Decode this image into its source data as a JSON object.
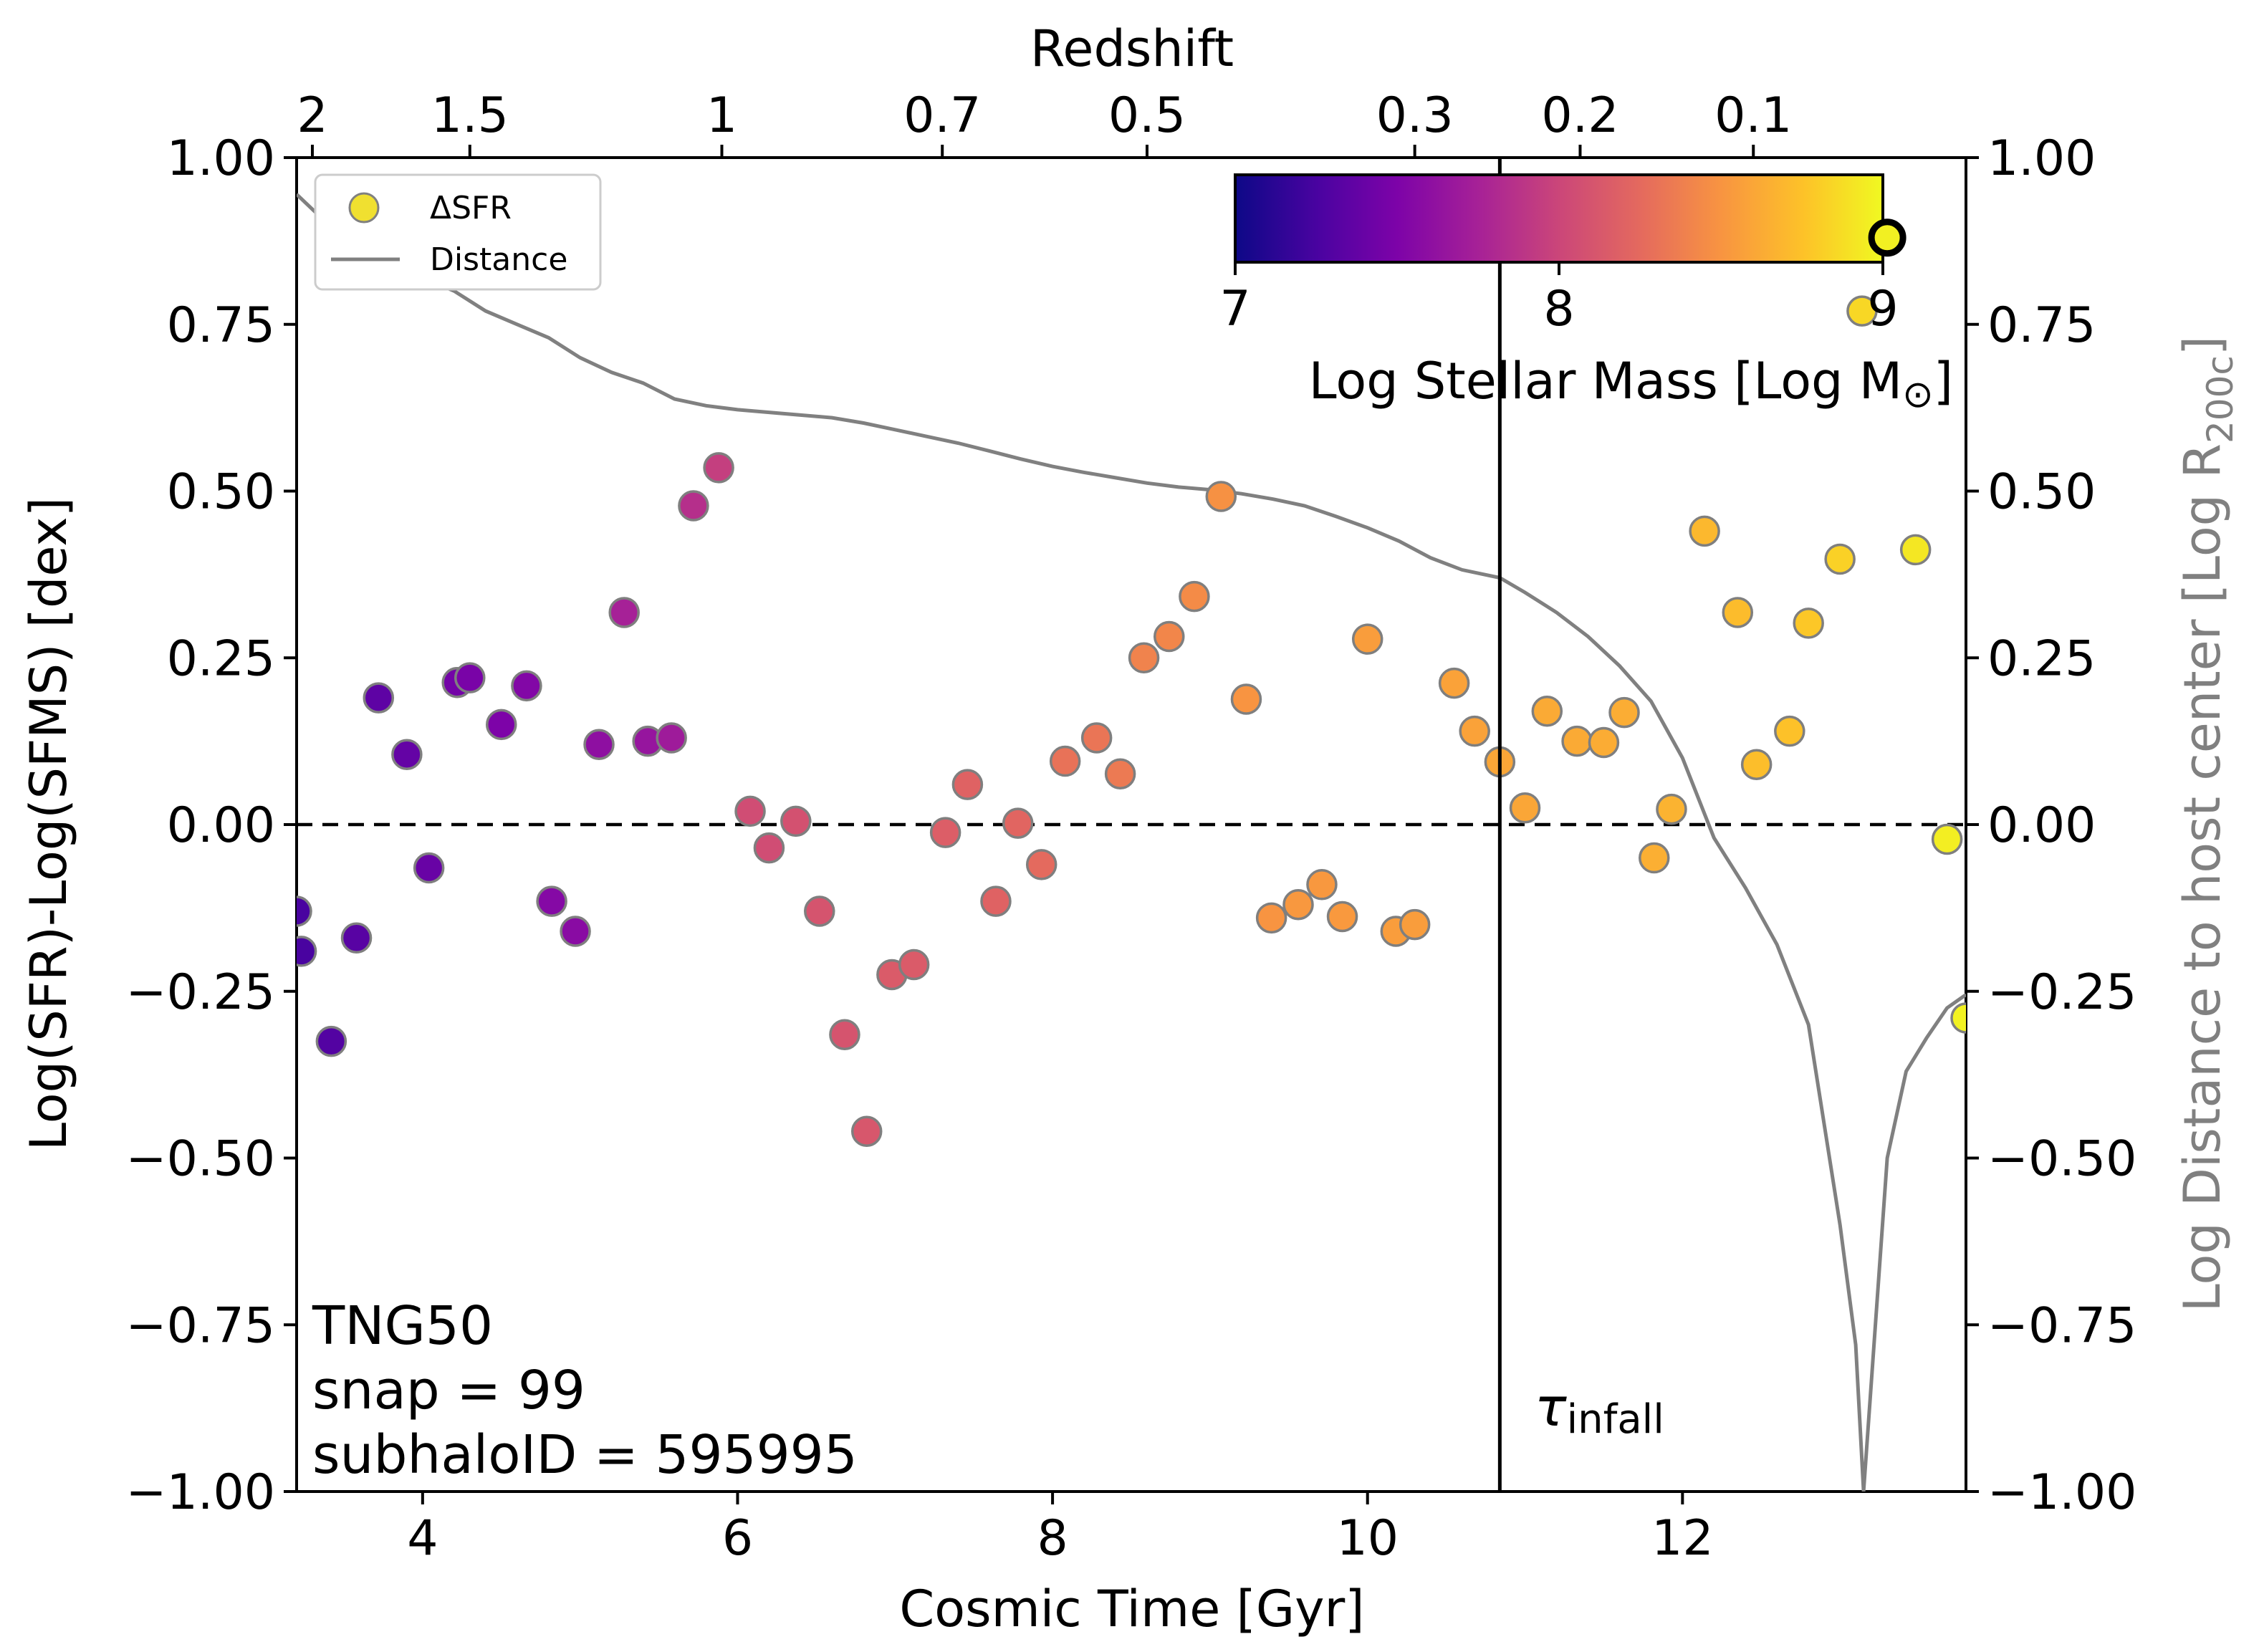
{
  "chart_data": {
    "type": "scatter",
    "xlabel": "Cosmic Time [Gyr]",
    "ylabel": "Log(SFR)-Log(SFMS) [dex]",
    "y2label": {
      "main": "Log Distance to host center [Log R",
      "sub": "200c",
      "close": "]"
    },
    "top_axis_title": "Redshift",
    "xlim": [
      3.2,
      13.8
    ],
    "ylim": [
      -1.0,
      1.0
    ],
    "x_ticks": [
      4,
      6,
      8,
      10,
      12
    ],
    "x_tick_labels": [
      "4",
      "6",
      "8",
      "10",
      "12"
    ],
    "y_ticks": [
      -1.0,
      -0.75,
      -0.5,
      -0.25,
      0.0,
      0.25,
      0.5,
      0.75,
      1.0
    ],
    "y_tick_labels": [
      "−1.00",
      "−0.75",
      "−0.50",
      "−0.25",
      "0.00",
      "0.25",
      "0.50",
      "0.75",
      "1.00"
    ],
    "top_ticks": [
      {
        "label": "2",
        "t": 3.3
      },
      {
        "label": "1.5",
        "t": 4.3
      },
      {
        "label": "1",
        "t": 5.9
      },
      {
        "label": "0.7",
        "t": 7.3
      },
      {
        "label": "0.5",
        "t": 8.6
      },
      {
        "label": "0.3",
        "t": 10.3
      },
      {
        "label": "0.2",
        "t": 11.35
      },
      {
        "label": "0.1",
        "t": 12.45
      }
    ],
    "infall_time": 10.84,
    "infall_label": {
      "main": "τ",
      "sub": "infall"
    },
    "zero_line": 0.0,
    "legend": [
      {
        "label": "ΔSFR",
        "marker": "circle",
        "color": "#f0e030"
      },
      {
        "label": "Distance",
        "marker": "line",
        "color": "#808080"
      }
    ],
    "colorbar": {
      "label": {
        "main": "Log Stellar Mass [Log M",
        "sub": "⊙",
        "close": "]"
      },
      "min": 7,
      "max": 9,
      "ticks": [
        7,
        8,
        9
      ],
      "tick_labels": [
        "7",
        "8",
        "9"
      ],
      "colormap": "plasma"
    },
    "annotation": [
      "TNG50",
      "snap = 99",
      "subhaloID = 595995"
    ],
    "highlight_point": {
      "x": 13.3,
      "y": 0.88,
      "mass": 8.96
    },
    "series": [
      {
        "name": "ΔSFR",
        "points": [
          {
            "x": 3.2,
            "y": -0.13,
            "mass": 7.25
          },
          {
            "x": 3.23,
            "y": -0.19,
            "mass": 7.25
          },
          {
            "x": 3.42,
            "y": -0.325,
            "mass": 7.3
          },
          {
            "x": 3.58,
            "y": -0.17,
            "mass": 7.32
          },
          {
            "x": 3.72,
            "y": 0.19,
            "mass": 7.35
          },
          {
            "x": 3.9,
            "y": 0.105,
            "mass": 7.38
          },
          {
            "x": 4.04,
            "y": -0.065,
            "mass": 7.4
          },
          {
            "x": 4.22,
            "y": 0.213,
            "mass": 7.45
          },
          {
            "x": 4.3,
            "y": 0.22,
            "mass": 7.48
          },
          {
            "x": 4.5,
            "y": 0.15,
            "mass": 7.5
          },
          {
            "x": 4.66,
            "y": 0.208,
            "mass": 7.53
          },
          {
            "x": 4.82,
            "y": -0.115,
            "mass": 7.55
          },
          {
            "x": 4.97,
            "y": -0.16,
            "mass": 7.57
          },
          {
            "x": 5.12,
            "y": 0.12,
            "mass": 7.6
          },
          {
            "x": 5.28,
            "y": 0.318,
            "mass": 7.75
          },
          {
            "x": 5.43,
            "y": 0.125,
            "mass": 7.65
          },
          {
            "x": 5.58,
            "y": 0.13,
            "mass": 7.7
          },
          {
            "x": 5.72,
            "y": 0.478,
            "mass": 7.85
          },
          {
            "x": 5.88,
            "y": 0.535,
            "mass": 7.95
          },
          {
            "x": 6.08,
            "y": 0.02,
            "mass": 8.05
          },
          {
            "x": 6.2,
            "y": -0.035,
            "mass": 8.05
          },
          {
            "x": 6.37,
            "y": 0.005,
            "mass": 8.08
          },
          {
            "x": 6.52,
            "y": -0.13,
            "mass": 8.1
          },
          {
            "x": 6.68,
            "y": -0.315,
            "mass": 8.1
          },
          {
            "x": 6.82,
            "y": -0.46,
            "mass": 8.12
          },
          {
            "x": 6.98,
            "y": -0.225,
            "mass": 8.15
          },
          {
            "x": 7.12,
            "y": -0.21,
            "mass": 8.15
          },
          {
            "x": 7.32,
            "y": -0.012,
            "mass": 8.17
          },
          {
            "x": 7.46,
            "y": 0.06,
            "mass": 8.2
          },
          {
            "x": 7.64,
            "y": -0.115,
            "mass": 8.2
          },
          {
            "x": 7.78,
            "y": 0.002,
            "mass": 8.22
          },
          {
            "x": 7.93,
            "y": -0.06,
            "mass": 8.25
          },
          {
            "x": 8.08,
            "y": 0.095,
            "mass": 8.3
          },
          {
            "x": 8.28,
            "y": 0.13,
            "mass": 8.32
          },
          {
            "x": 8.43,
            "y": 0.076,
            "mass": 8.35
          },
          {
            "x": 8.58,
            "y": 0.25,
            "mass": 8.4
          },
          {
            "x": 8.74,
            "y": 0.282,
            "mass": 8.42
          },
          {
            "x": 8.9,
            "y": 0.342,
            "mass": 8.45
          },
          {
            "x": 9.07,
            "y": 0.492,
            "mass": 8.48
          },
          {
            "x": 9.23,
            "y": 0.188,
            "mass": 8.5
          },
          {
            "x": 9.39,
            "y": -0.14,
            "mass": 8.5
          },
          {
            "x": 9.56,
            "y": -0.12,
            "mass": 8.52
          },
          {
            "x": 9.71,
            "y": -0.09,
            "mass": 8.52
          },
          {
            "x": 9.84,
            "y": -0.138,
            "mass": 8.53
          },
          {
            "x": 10.0,
            "y": 0.278,
            "mass": 8.55
          },
          {
            "x": 10.18,
            "y": -0.16,
            "mass": 8.55
          },
          {
            "x": 10.3,
            "y": -0.15,
            "mass": 8.55
          },
          {
            "x": 10.55,
            "y": 0.212,
            "mass": 8.58
          },
          {
            "x": 10.68,
            "y": 0.14,
            "mass": 8.58
          },
          {
            "x": 10.84,
            "y": 0.094,
            "mass": 8.6
          },
          {
            "x": 11.0,
            "y": 0.025,
            "mass": 8.6
          },
          {
            "x": 11.14,
            "y": 0.17,
            "mass": 8.62
          },
          {
            "x": 11.33,
            "y": 0.125,
            "mass": 8.62
          },
          {
            "x": 11.5,
            "y": 0.123,
            "mass": 8.63
          },
          {
            "x": 11.63,
            "y": 0.168,
            "mass": 8.64
          },
          {
            "x": 11.82,
            "y": -0.05,
            "mass": 8.65
          },
          {
            "x": 11.93,
            "y": 0.023,
            "mass": 8.67
          },
          {
            "x": 12.14,
            "y": 0.44,
            "mass": 8.7
          },
          {
            "x": 12.35,
            "y": 0.318,
            "mass": 8.72
          },
          {
            "x": 12.47,
            "y": 0.09,
            "mass": 8.73
          },
          {
            "x": 12.68,
            "y": 0.14,
            "mass": 8.75
          },
          {
            "x": 12.8,
            "y": 0.302,
            "mass": 8.78
          },
          {
            "x": 13.0,
            "y": 0.398,
            "mass": 8.82
          },
          {
            "x": 13.14,
            "y": 0.77,
            "mass": 8.85
          },
          {
            "x": 13.48,
            "y": 0.412,
            "mass": 8.92
          },
          {
            "x": 13.68,
            "y": -0.022,
            "mass": 8.95
          },
          {
            "x": 13.8,
            "y": -0.29,
            "mass": 8.97
          }
        ]
      },
      {
        "name": "Distance",
        "line_points": [
          [
            3.2,
            0.945
          ],
          [
            3.4,
            0.9
          ],
          [
            3.6,
            0.862
          ],
          [
            3.8,
            0.84
          ],
          [
            4.0,
            0.82
          ],
          [
            4.2,
            0.8
          ],
          [
            4.4,
            0.77
          ],
          [
            4.6,
            0.75
          ],
          [
            4.8,
            0.73
          ],
          [
            5.0,
            0.7
          ],
          [
            5.2,
            0.678
          ],
          [
            5.4,
            0.662
          ],
          [
            5.6,
            0.638
          ],
          [
            5.8,
            0.628
          ],
          [
            6.0,
            0.622
          ],
          [
            6.2,
            0.618
          ],
          [
            6.4,
            0.614
          ],
          [
            6.6,
            0.61
          ],
          [
            6.8,
            0.602
          ],
          [
            7.0,
            0.592
          ],
          [
            7.2,
            0.582
          ],
          [
            7.4,
            0.572
          ],
          [
            7.6,
            0.56
          ],
          [
            7.8,
            0.548
          ],
          [
            8.0,
            0.537
          ],
          [
            8.2,
            0.528
          ],
          [
            8.4,
            0.52
          ],
          [
            8.6,
            0.512
          ],
          [
            8.8,
            0.506
          ],
          [
            9.0,
            0.502
          ],
          [
            9.2,
            0.496
          ],
          [
            9.4,
            0.488
          ],
          [
            9.6,
            0.478
          ],
          [
            9.8,
            0.462
          ],
          [
            10.0,
            0.445
          ],
          [
            10.2,
            0.425
          ],
          [
            10.4,
            0.4
          ],
          [
            10.6,
            0.382
          ],
          [
            10.84,
            0.37
          ],
          [
            11.0,
            0.348
          ],
          [
            11.2,
            0.318
          ],
          [
            11.4,
            0.282
          ],
          [
            11.6,
            0.238
          ],
          [
            11.8,
            0.185
          ],
          [
            12.0,
            0.1
          ],
          [
            12.2,
            -0.02
          ],
          [
            12.4,
            -0.095
          ],
          [
            12.6,
            -0.18
          ],
          [
            12.8,
            -0.3
          ],
          [
            13.0,
            -0.6
          ],
          [
            13.1,
            -0.78
          ],
          [
            13.15,
            -1.0
          ],
          [
            13.3,
            -0.5
          ],
          [
            13.42,
            -0.37
          ],
          [
            13.55,
            -0.32
          ],
          [
            13.68,
            -0.275
          ],
          [
            13.8,
            -0.255
          ]
        ]
      }
    ]
  }
}
